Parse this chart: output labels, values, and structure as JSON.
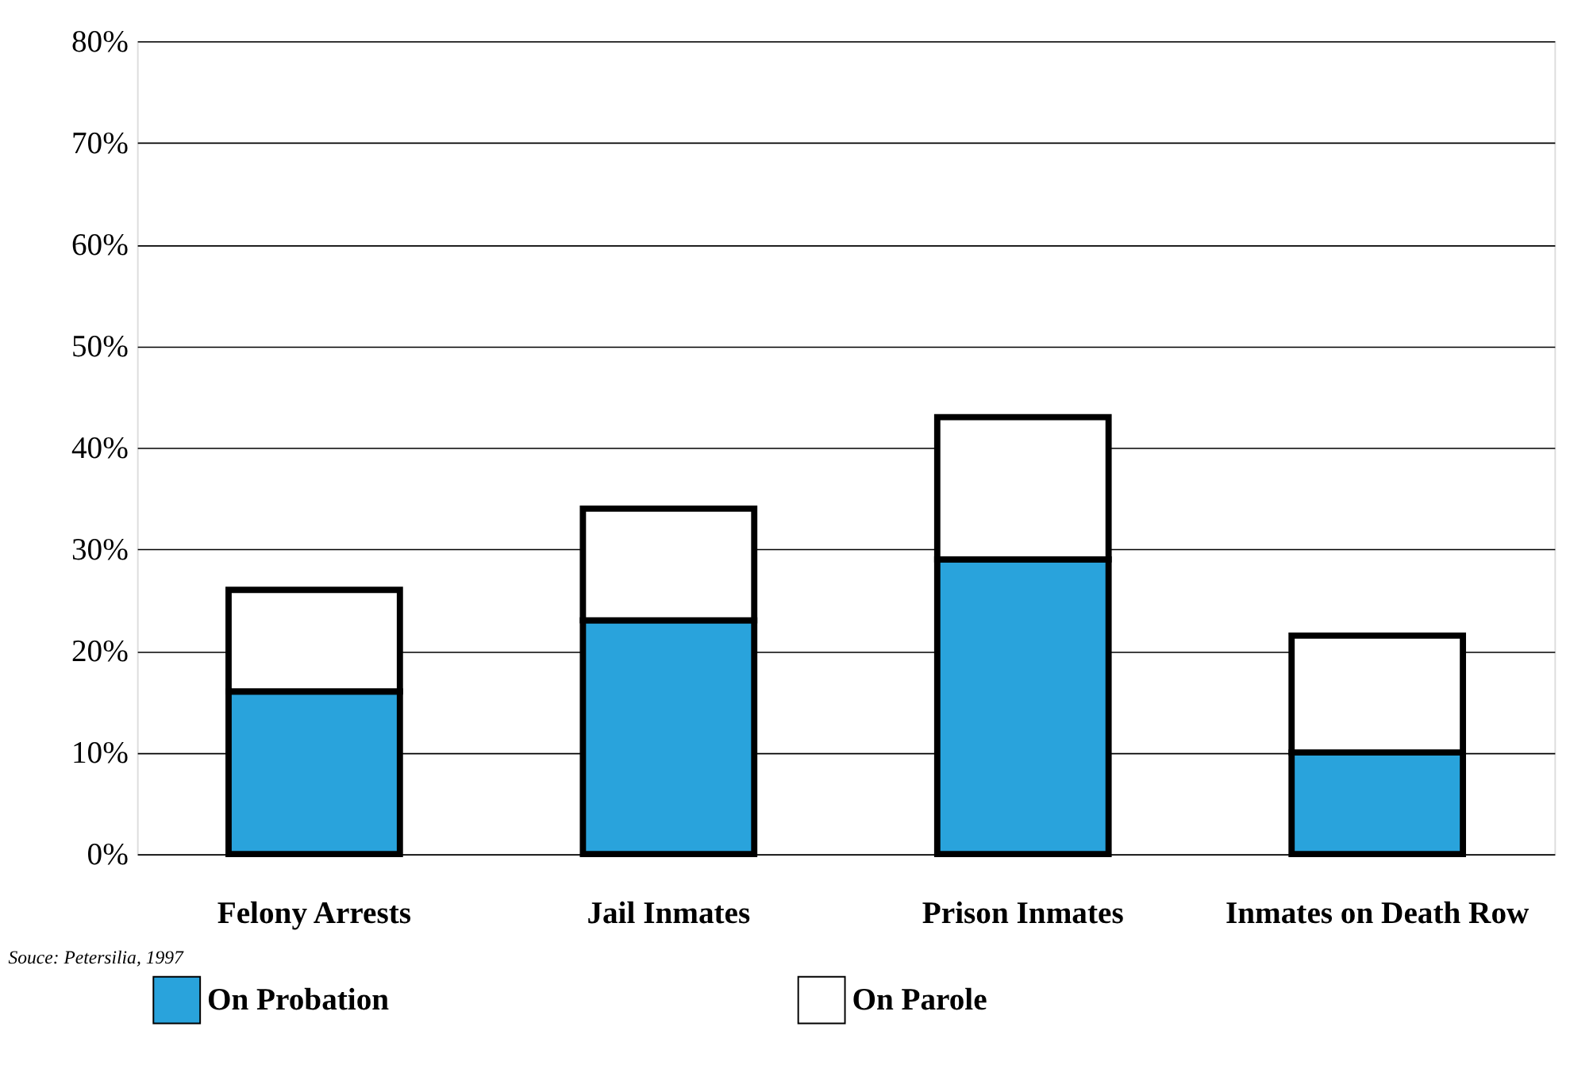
{
  "chart_data": {
    "type": "bar",
    "stacked": true,
    "categories": [
      "Felony Arrests",
      "Jail Inmates",
      "Prison Inmates",
      "Inmates on Death Row"
    ],
    "series": [
      {
        "name": "On Probation",
        "color": "#29a3dc",
        "values": [
          16,
          23,
          29,
          10
        ]
      },
      {
        "name": "On Parole",
        "color": "#ffffff",
        "values": [
          10,
          11,
          14,
          11.5
        ]
      }
    ],
    "ylim": [
      0,
      80
    ],
    "yticks": [
      {
        "value": 0,
        "label": "0%"
      },
      {
        "value": 10,
        "label": "10%"
      },
      {
        "value": 20,
        "label": "20%"
      },
      {
        "value": 30,
        "label": "30%"
      },
      {
        "value": 40,
        "label": "40%"
      },
      {
        "value": 50,
        "label": "50%"
      },
      {
        "value": 60,
        "label": "60%"
      },
      {
        "value": 70,
        "label": "70%"
      },
      {
        "value": 80,
        "label": "80%"
      }
    ],
    "grid": "y",
    "legend": "bottom",
    "annotations": [
      "Souce:  Petersilia, 1997"
    ]
  }
}
